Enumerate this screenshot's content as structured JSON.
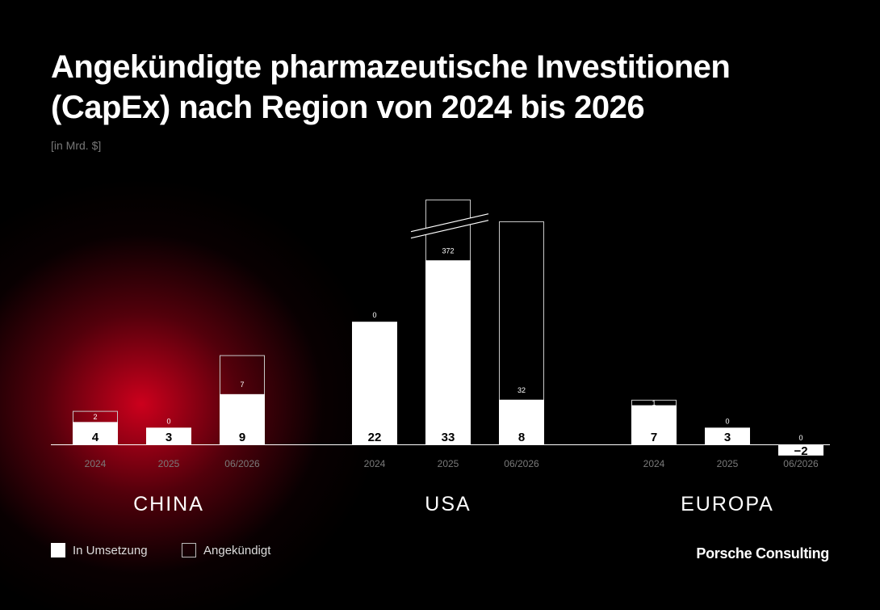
{
  "title_line1": "Angekündigte pharmazeutische Investitionen",
  "title_line2": "(CapEx) nach Region von 2024 bis 2026",
  "subtitle": "[in Mrd. $]",
  "legend": {
    "in_umsetzung": "In Umsetzung",
    "angekuendigt": "Angekündigt"
  },
  "brand": "Porsche Consulting",
  "colors": {
    "background": "#000000",
    "accent_glow": "#d7001e",
    "bar": "#ffffff"
  },
  "chart_data": {
    "type": "bar",
    "stacked": true,
    "title": "Angekündigte pharmazeutische Investitionen (CapEx) nach Region von 2024 bis 2026",
    "ylabel": "[in Mrd. $]",
    "groups": [
      {
        "region": "CHINA",
        "bars": [
          {
            "period": "2024",
            "in_umsetzung": 4,
            "angekuendigt": 2
          },
          {
            "period": "2025",
            "in_umsetzung": 3,
            "angekuendigt": 0
          },
          {
            "period": "06/2026",
            "in_umsetzung": 9,
            "angekuendigt": 7
          }
        ]
      },
      {
        "region": "USA",
        "bars": [
          {
            "period": "2024",
            "in_umsetzung": 22,
            "angekuendigt": 0
          },
          {
            "period": "2025",
            "in_umsetzung": 33,
            "angekuendigt": 372,
            "axis_break": true
          },
          {
            "period": "06/2026",
            "in_umsetzung": 8,
            "angekuendigt": 32
          }
        ]
      },
      {
        "region": "EUROPA",
        "bars": [
          {
            "period": "2024",
            "in_umsetzung": 7,
            "angekuendigt": 1
          },
          {
            "period": "2025",
            "in_umsetzung": 3,
            "angekuendigt": 0
          },
          {
            "period": "06/2026",
            "in_umsetzung": -2,
            "angekuendigt": 0
          }
        ]
      }
    ],
    "series": [
      {
        "name": "In Umsetzung",
        "key": "in_umsetzung"
      },
      {
        "name": "Angekündigt",
        "key": "angekuendigt"
      }
    ]
  }
}
